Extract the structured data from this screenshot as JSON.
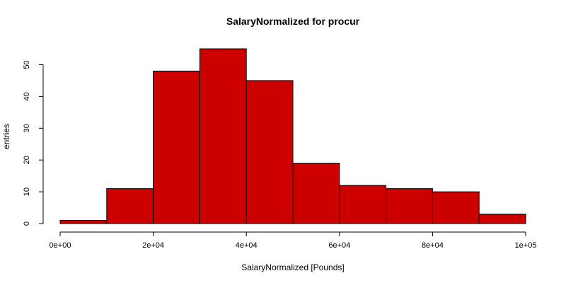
{
  "chart_data": {
    "type": "bar",
    "title": "SalaryNormalized for procur",
    "xlabel": "SalaryNormalized [Pounds]",
    "ylabel": "entries",
    "bin_edges": [
      0,
      10000,
      20000,
      30000,
      40000,
      50000,
      60000,
      70000,
      80000,
      90000,
      100000
    ],
    "values": [
      1,
      11,
      48,
      55,
      45,
      19,
      12,
      11,
      10,
      3
    ],
    "xlim": [
      0,
      100000
    ],
    "ylim": [
      0,
      55
    ],
    "x_ticks": [
      0,
      20000,
      40000,
      60000,
      80000,
      100000
    ],
    "x_tick_labels": [
      "0e+00",
      "2e+04",
      "4e+04",
      "6e+04",
      "8e+04",
      "1e+05"
    ],
    "y_ticks": [
      0,
      10,
      20,
      30,
      40,
      50
    ],
    "y_tick_labels": [
      "0",
      "10",
      "20",
      "30",
      "40",
      "50"
    ],
    "bar_color": "#cd0000",
    "grid": false,
    "legend": "none"
  }
}
